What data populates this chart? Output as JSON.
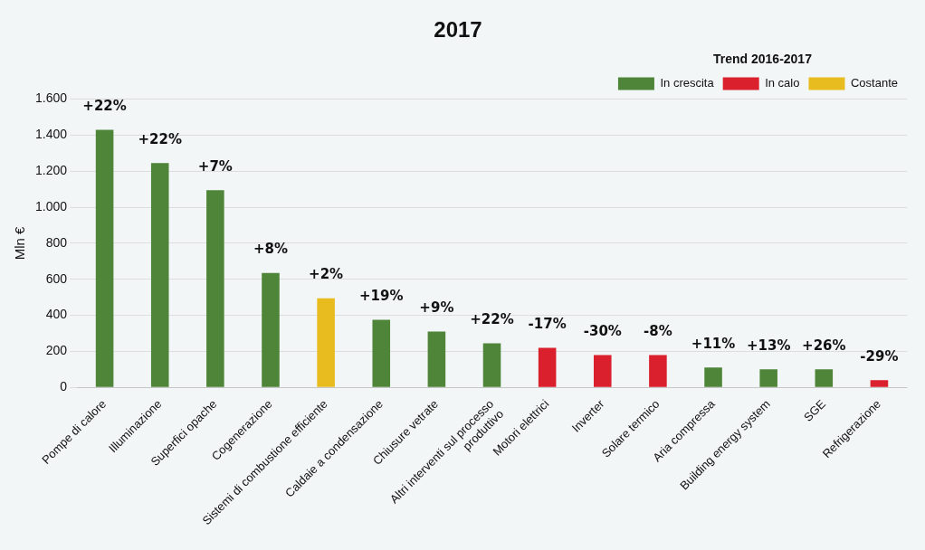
{
  "chart_data": {
    "type": "bar",
    "title": "2017",
    "ylabel": "Mln €",
    "legend_title": "Trend 2016-2017",
    "stacked": true,
    "legend": "top right",
    "grid": "y",
    "categories": [
      "Pompe di calore",
      "Illuminazione",
      "Superfici opache",
      "Cogenerazione",
      "Sistemi di combustione efficiente",
      "Caldaie a condensazione",
      "Chiusure vetrate",
      "Altri interventi sul processo\nproduttivo",
      "Motori elettrici",
      "Inverter",
      "Solare termico",
      "Aria compressa",
      "Building energy system",
      "SGE",
      "Refrigerazione"
    ],
    "ylim": [
      0,
      1600
    ],
    "yticks": [
      {
        "value": 0,
        "label": "0"
      },
      {
        "value": 200,
        "label": "200"
      },
      {
        "value": 400,
        "label": "400"
      },
      {
        "value": 600,
        "label": "600"
      },
      {
        "value": 800,
        "label": "800"
      },
      {
        "value": 1000,
        "label": "1.000"
      },
      {
        "value": 1200,
        "label": "1.200"
      },
      {
        "value": 1400,
        "label": "1.400"
      },
      {
        "value": 1600,
        "label": "1.600"
      }
    ],
    "series": [
      {
        "name": "In crescita",
        "color": "#4e8538",
        "values": [
          1430,
          1245,
          1095,
          635,
          null,
          375,
          310,
          245,
          null,
          null,
          null,
          110,
          100,
          100,
          null
        ]
      },
      {
        "name": "In calo",
        "color": "#d9202c",
        "values": [
          null,
          null,
          null,
          null,
          null,
          null,
          null,
          null,
          220,
          180,
          180,
          null,
          null,
          null,
          40
        ]
      },
      {
        "name": "Costante",
        "color": "#e8bb1e",
        "values": [
          null,
          null,
          null,
          null,
          495,
          null,
          null,
          null,
          null,
          null,
          null,
          null,
          null,
          null,
          null
        ]
      }
    ],
    "annotations": [
      {
        "text": "+22%",
        "x": "Pompe di calore",
        "y": 1430
      },
      {
        "text": "+22%",
        "x": "Illuminazione",
        "y": 1245
      },
      {
        "text": "+7%",
        "x": "Superfici opache",
        "y": 1095
      },
      {
        "text": "+8%",
        "x": "Cogenerazione",
        "y": 635
      },
      {
        "text": "+2%",
        "x": "Sistemi di combustione efficiente",
        "y": 495
      },
      {
        "text": "+19%",
        "x": "Caldaie a condensazione",
        "y": 375
      },
      {
        "text": "+9%",
        "x": "Chiusure vetrate",
        "y": 310
      },
      {
        "text": "+22%",
        "x": "Altri interventi sul processo\nproduttivo",
        "y": 245
      },
      {
        "text": "-17%",
        "x": "Motori elettrici",
        "y": 220
      },
      {
        "text": "-30%",
        "x": "Inverter",
        "y": 180
      },
      {
        "text": "-8%",
        "x": "Solare termico",
        "y": 180
      },
      {
        "text": "+11%",
        "x": "Aria compressa",
        "y": 110
      },
      {
        "text": "+13%",
        "x": "Building energy system",
        "y": 100
      },
      {
        "text": "+26%",
        "x": "SGE",
        "y": 100
      },
      {
        "text": "-29%",
        "x": "Refrigerazione",
        "y": 40
      }
    ]
  }
}
